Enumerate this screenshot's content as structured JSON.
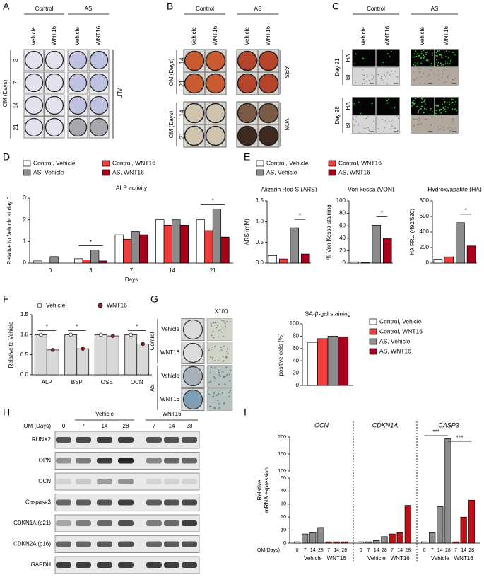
{
  "images": {
    "A": {
      "label": "A",
      "groups": [
        "Control",
        "AS"
      ],
      "columns": [
        "Vehicle",
        "WNT16",
        "Vehicle",
        "WNT16"
      ],
      "row_title": "OM (Days)",
      "rows": [
        "3",
        "7",
        "14",
        "21"
      ],
      "stain": "ALP"
    },
    "B": {
      "label": "B",
      "groups": [
        "Control",
        "AS"
      ],
      "columns": [
        "Vehicle",
        "WNT16",
        "Vehicle",
        "WNT16"
      ],
      "sections": [
        {
          "row_title": "OM (Days)",
          "rows": [
            "14",
            "21"
          ],
          "stain": "ARS"
        },
        {
          "row_title": "OM (Days)",
          "rows": [
            "14",
            "21"
          ],
          "stain": "VON"
        }
      ]
    },
    "C": {
      "label": "C",
      "groups": [
        "Control",
        "AS"
      ],
      "columns": [
        "Vehicle",
        "WNT16",
        "Vehicle",
        "WNT16"
      ],
      "sections": [
        {
          "day": "Day 21",
          "rows": [
            "HA",
            "BF"
          ]
        },
        {
          "day": "Day 28",
          "rows": [
            "HA",
            "BF"
          ]
        }
      ]
    },
    "G": {
      "label": "G",
      "magnification": "X100",
      "groups": [
        {
          "name": "Control",
          "rows": [
            "Vehicle",
            "WNT16"
          ]
        },
        {
          "name": "AS",
          "rows": [
            "Vehicle",
            "WNT16"
          ]
        }
      ]
    }
  },
  "blot": {
    "label": "H",
    "time_label": "OM (Days)",
    "groups": [
      "Vehicle",
      "WNT16"
    ],
    "lanes": [
      "0",
      "7",
      "14",
      "28",
      "7",
      "14",
      "28"
    ],
    "proteins": [
      "RUNX2",
      "OPN",
      "OCN",
      "Caspase3",
      "CDKN1A (p21)",
      "CDKN2A (p16)",
      "GAPDH"
    ]
  },
  "chart_data": [
    {
      "type": "grouped_bar",
      "label": "D",
      "title": "ALP activity",
      "ylabel": "Relative to Vehicle at day 0",
      "xlabel": "Days",
      "categories": [
        "0",
        "3",
        "7",
        "14",
        "21"
      ],
      "legend_symbol": "square",
      "series": [
        {
          "name": "Control, Vehicle",
          "color": "#ffffff",
          "values": [
            0.1,
            0.2,
            1.3,
            2.0,
            2.0
          ]
        },
        {
          "name": "Control, WNT16",
          "color": "#f03c3c",
          "values": [
            null,
            0.15,
            1.1,
            1.75,
            1.5
          ]
        },
        {
          "name": "AS, Vehicle",
          "color": "#8c8c8c",
          "values": [
            0.3,
            0.6,
            1.45,
            2.0,
            2.5
          ]
        },
        {
          "name": "AS, WNT16",
          "color": "#a8001c",
          "values": [
            null,
            0.1,
            1.3,
            1.75,
            1.2
          ]
        }
      ],
      "ylim": [
        0,
        3
      ],
      "yticks": [
        0,
        1,
        2,
        3
      ],
      "significance": [
        null,
        "*",
        null,
        null,
        "*"
      ]
    },
    {
      "type": "bar_panels",
      "label": "E",
      "series": [
        {
          "name": "Control, Vehicle",
          "color": "#ffffff"
        },
        {
          "name": "Control, WNT16",
          "color": "#f03c3c"
        },
        {
          "name": "AS, Vehicle",
          "color": "#8c8c8c"
        },
        {
          "name": "AS, WNT16",
          "color": "#a8001c"
        }
      ],
      "subplots": [
        {
          "title": "Alizarin Red S (ARS)",
          "ylabel": "ARS (mM)",
          "ylim": [
            0,
            1.5
          ],
          "yticks": [
            {
              "value": 0,
              "label": "0.0"
            },
            0.5,
            {
              "value": 1,
              "label": "1.0"
            },
            1.5
          ],
          "values": [
            0.18,
            0.1,
            0.85,
            0.22
          ],
          "significance": "*"
        },
        {
          "title": "Von kossa (VON)",
          "ylabel": "% Von Kossa staining",
          "ylim": [
            0,
            100
          ],
          "yticks": [
            0,
            20,
            40,
            60,
            80,
            100
          ],
          "values": [
            2,
            1,
            61,
            40
          ],
          "significance": "*"
        },
        {
          "title": "Hydroxyapatite (HA)",
          "ylabel": "HA FRU (492/520)",
          "ylim": [
            0,
            800
          ],
          "yticks": [
            0,
            200,
            400,
            600,
            800
          ],
          "values": [
            50,
            80,
            520,
            220
          ],
          "significance": "*"
        }
      ]
    },
    {
      "type": "grouped_bar",
      "label": "F",
      "ylabel": "Relative to Vehicle",
      "categories": [
        "ALP",
        "BSP",
        "OSE",
        "OCN"
      ],
      "legend_symbol": "circle",
      "series": [
        {
          "name": "Vehicle",
          "color": "#d9d9d9",
          "marker": "#ffffff",
          "values": [
            1.0,
            1.0,
            1.0,
            1.0
          ]
        },
        {
          "name": "WNT16",
          "color": "#d9d9d9",
          "marker": "#8b1a1a",
          "values": [
            0.62,
            0.65,
            0.97,
            0.77
          ]
        }
      ],
      "ylim": [
        0,
        1.5
      ],
      "yticks": [
        {
          "value": 0,
          "label": "0.0"
        },
        0.5,
        {
          "value": 1,
          "label": "1.0"
        },
        1.5
      ],
      "significance": [
        "*",
        "*",
        null,
        "*"
      ]
    },
    {
      "type": "grouped_bar",
      "title": "SA-β-gal staining",
      "ylabel": "positive cells (%)",
      "categories": [
        null
      ],
      "legend_symbol": "square",
      "series": [
        {
          "name": "Control, Vehicle",
          "color": "#ffffff",
          "values": [
            70
          ]
        },
        {
          "name": "Control, WNT16",
          "color": "#f03c3c",
          "values": [
            76
          ]
        },
        {
          "name": "AS, Vehicle",
          "color": "#8c8c8c",
          "values": [
            80
          ]
        },
        {
          "name": "AS, WNT16",
          "color": "#a8001c",
          "values": [
            79
          ]
        }
      ],
      "ylim": [
        0,
        100
      ],
      "yticks": [
        0,
        20,
        40,
        60,
        80,
        100
      ]
    },
    {
      "type": "broken_bar",
      "label": "I",
      "ylabel": [
        "Relative",
        "mRNA expression"
      ],
      "xlabel": "OM(Days)",
      "ylim": [
        0,
        200
      ],
      "axis_break": [
        50,
        100
      ],
      "yticks": [
        0,
        10,
        20,
        30,
        40,
        50,
        100,
        150,
        200
      ],
      "colors": [
        "#ffffff",
        "#8c8c8c",
        "#8c8c8c",
        "#8c8c8c",
        "#c0101a",
        "#c0101a",
        "#c0101a"
      ],
      "groups": [
        {
          "name": "OCN",
          "categories": [
            "0",
            "7",
            "14",
            "28",
            "7",
            "14",
            "28"
          ],
          "treatments": [
            "Vehicle",
            "WNT16"
          ],
          "values": [
            1,
            7,
            8,
            12,
            1,
            1,
            1
          ]
        },
        {
          "name": "CDKN1A",
          "categories": [
            "0",
            "7",
            "14",
            "28",
            "7",
            "14",
            "28"
          ],
          "treatments": [
            "Vehicle",
            "WNT16"
          ],
          "values": [
            1,
            1,
            2,
            5,
            7,
            8,
            29
          ]
        },
        {
          "name": "CASP3",
          "categories": [
            "0",
            "7",
            "14",
            "28",
            "7",
            "14",
            "28"
          ],
          "treatments": [
            "Vehicle",
            "WNT16"
          ],
          "values": [
            1,
            8,
            28,
            195,
            1,
            20,
            33
          ],
          "significance": [
            "***",
            "***"
          ]
        }
      ]
    }
  ]
}
